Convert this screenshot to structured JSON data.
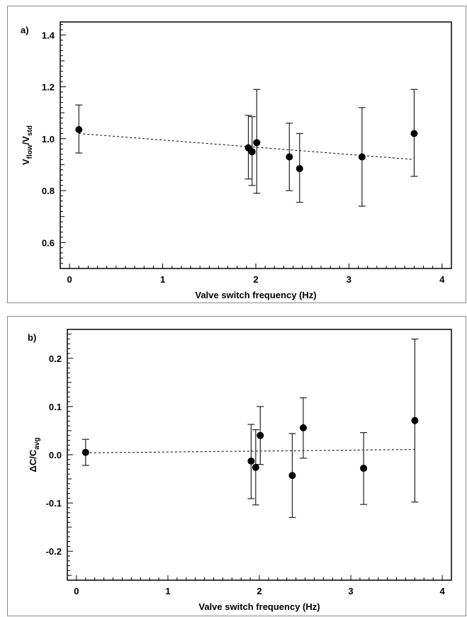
{
  "chart_data": [
    {
      "type": "scatter",
      "panel_label": "a)",
      "xlabel": "Valve switch frequency (Hz)",
      "ylabel_main": "V",
      "ylabel_sub1": "flow",
      "ylabel_mid": "/V",
      "ylabel_sub2": "std",
      "xlim": [
        -0.1,
        4.1
      ],
      "ylim": [
        0.5,
        1.45
      ],
      "xticks": [
        "0",
        "1",
        "2",
        "3",
        "4"
      ],
      "xtick_values": [
        0,
        1,
        2,
        3,
        4
      ],
      "yticks": [
        "0.6",
        "0.8",
        "1.0",
        "1.2",
        "1.4"
      ],
      "ytick_values": [
        0.6,
        0.8,
        1.0,
        1.2,
        1.4
      ],
      "points": [
        {
          "x": 0.1,
          "y": 1.035,
          "err_low": 0.945,
          "err_high": 1.13
        },
        {
          "x": 1.92,
          "y": 0.965,
          "err_low": 0.845,
          "err_high": 1.09
        },
        {
          "x": 1.96,
          "y": 0.95,
          "err_low": 0.82,
          "err_high": 1.085
        },
        {
          "x": 2.01,
          "y": 0.985,
          "err_low": 0.79,
          "err_high": 1.19
        },
        {
          "x": 2.36,
          "y": 0.93,
          "err_low": 0.8,
          "err_high": 1.06
        },
        {
          "x": 2.47,
          "y": 0.885,
          "err_low": 0.755,
          "err_high": 1.02
        },
        {
          "x": 3.14,
          "y": 0.93,
          "err_low": 0.74,
          "err_high": 1.12
        },
        {
          "x": 3.7,
          "y": 1.02,
          "err_low": 0.855,
          "err_high": 1.19
        }
      ],
      "fit_line": {
        "x": [
          0.1,
          3.7
        ],
        "y": [
          1.02,
          0.92
        ],
        "style": "dashed"
      },
      "grid": false
    },
    {
      "type": "scatter",
      "panel_label": "b)",
      "xlabel": "Valve switch frequency (Hz)",
      "ylabel_main": "ΔC/C",
      "ylabel_sub1": "avg",
      "ylabel_mid": "",
      "ylabel_sub2": "",
      "xlim": [
        -0.1,
        4.1
      ],
      "ylim": [
        -0.26,
        0.26
      ],
      "xticks": [
        "0",
        "1",
        "2",
        "3",
        "4"
      ],
      "xtick_values": [
        0,
        1,
        2,
        3,
        4
      ],
      "yticks": [
        "-0.2",
        "-0.1",
        "0.0",
        "0.1",
        "0.2"
      ],
      "ytick_values": [
        -0.2,
        -0.1,
        0.0,
        0.1,
        0.2
      ],
      "points": [
        {
          "x": 0.1,
          "y": 0.005,
          "err_low": -0.022,
          "err_high": 0.032
        },
        {
          "x": 1.91,
          "y": -0.013,
          "err_low": -0.091,
          "err_high": 0.063
        },
        {
          "x": 1.96,
          "y": -0.026,
          "err_low": -0.104,
          "err_high": 0.052
        },
        {
          "x": 2.01,
          "y": 0.04,
          "err_low": -0.02,
          "err_high": 0.1
        },
        {
          "x": 2.36,
          "y": -0.043,
          "err_low": -0.13,
          "err_high": 0.044
        },
        {
          "x": 2.48,
          "y": 0.056,
          "err_low": -0.007,
          "err_high": 0.118
        },
        {
          "x": 3.14,
          "y": -0.028,
          "err_low": -0.103,
          "err_high": 0.046
        },
        {
          "x": 3.7,
          "y": 0.071,
          "err_low": -0.098,
          "err_high": 0.24
        }
      ],
      "fit_line": {
        "x": [
          0.1,
          3.7
        ],
        "y": [
          0.004,
          0.011
        ],
        "style": "dashed"
      },
      "grid": false
    }
  ]
}
